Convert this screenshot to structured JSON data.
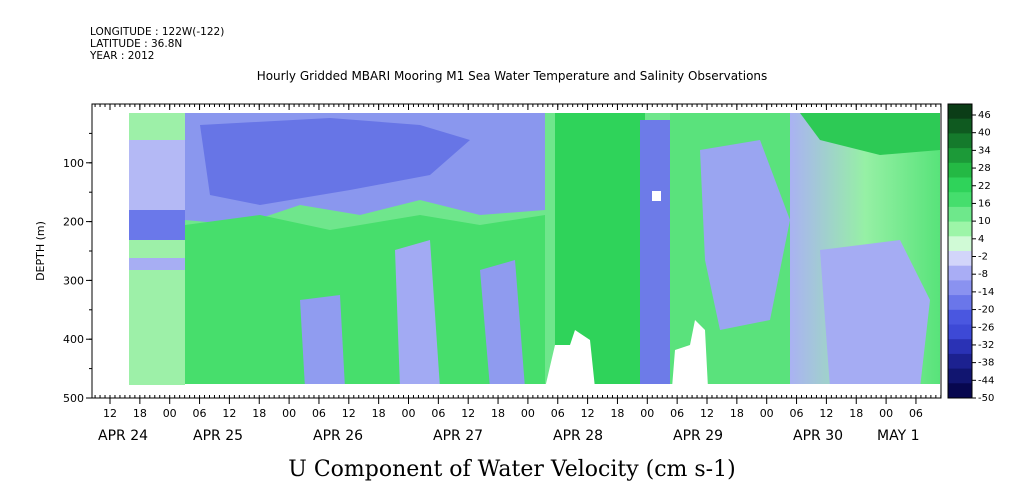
{
  "meta": {
    "longitude": "LONGITUDE : 122W(-122)",
    "latitude": "LATITUDE : 36.8N",
    "year": "YEAR : 2012"
  },
  "chart_data": {
    "type": "heatmap",
    "title": "Hourly Gridded MBARI Mooring M1 Sea Water Temperature and Salinity Observations",
    "variable_label": "U Component of Water Velocity (cm s-1)",
    "ylabel": "DEPTH (m)",
    "ylim": [
      500,
      0
    ],
    "y_ticks": [
      "100",
      "200",
      "300",
      "400",
      "500"
    ],
    "x_hour_labels": [
      "12",
      "18",
      "00",
      "06",
      "12",
      "18",
      "00",
      "06",
      "12",
      "18",
      "00",
      "06",
      "12",
      "18",
      "00",
      "06",
      "12",
      "18",
      "00",
      "06",
      "12",
      "18",
      "00",
      "06",
      "12",
      "18",
      "00",
      "06"
    ],
    "x_date_labels": [
      "APR 24",
      "APR 25",
      "APR 26",
      "APR 27",
      "APR 28",
      "APR 29",
      "APR 30",
      "MAY  1"
    ],
    "colorbar_labels": [
      "46",
      "40",
      "34",
      "28",
      "22",
      "16",
      "10",
      "4",
      "-2",
      "-8",
      "-14",
      "-20",
      "-26",
      "-32",
      "-38",
      "-44",
      "-50"
    ],
    "colors": {
      "strong_positive": "#0b3d17",
      "positive": "#2fd35a",
      "weak_positive": "#9df5a8",
      "near_zero": "#ffffff",
      "weak_negative": "#a9adf5",
      "negative": "#3d49d6",
      "strong_negative": "#07074f"
    }
  }
}
